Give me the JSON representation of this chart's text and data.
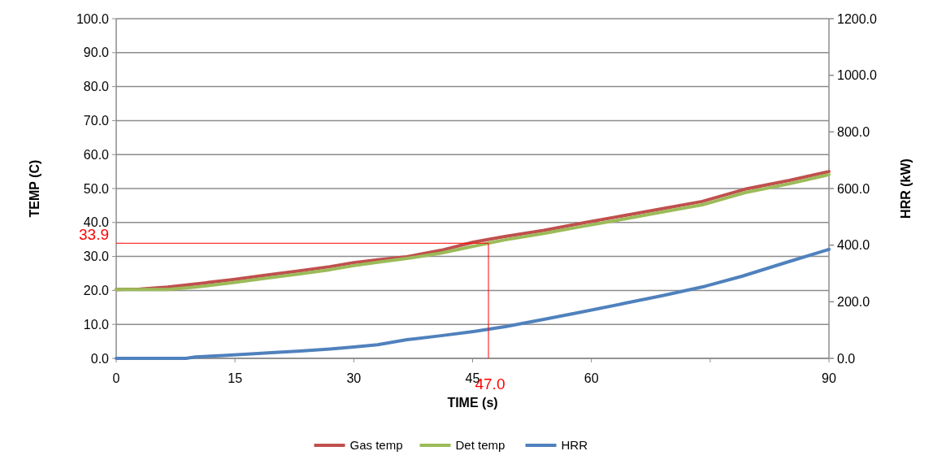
{
  "chart_data": {
    "type": "line",
    "xlabel": "TIME (s)",
    "ylabel": "TEMP (C)",
    "y2label": "HRR (kW)",
    "xlim": [
      0,
      90
    ],
    "xticks": [
      0,
      15,
      30,
      45,
      60,
      {
        "value": 75,
        "label": null
      },
      90
    ],
    "ylim": [
      0,
      100
    ],
    "yticks": [
      {
        "value": 0,
        "label": "0.0"
      },
      {
        "value": 10,
        "label": "10.0"
      },
      {
        "value": 20,
        "label": "20.0"
      },
      {
        "value": 30,
        "label": "30.0"
      },
      {
        "value": 40,
        "label": "40.0"
      },
      {
        "value": 50,
        "label": "50.0"
      },
      {
        "value": 60,
        "label": "60.0"
      },
      {
        "value": 70,
        "label": "70.0"
      },
      {
        "value": 80,
        "label": "80.0"
      },
      {
        "value": 90,
        "label": "90.0"
      },
      {
        "value": 100,
        "label": "100.0"
      }
    ],
    "y2lim": [
      0,
      1200
    ],
    "y2ticks": [
      {
        "value": 0,
        "label": "0.0"
      },
      {
        "value": 200,
        "label": "200.0"
      },
      {
        "value": 400,
        "label": "400.0"
      },
      {
        "value": 600,
        "label": "600.0"
      },
      {
        "value": 800,
        "label": "800.0"
      },
      {
        "value": 1000,
        "label": "1000.0"
      },
      {
        "value": 1200,
        "label": "1200.0"
      }
    ],
    "grid": "y",
    "legend": "bottom",
    "marker": "none",
    "line_style": "solid",
    "series": [
      {
        "name": "Gas temp",
        "color": "#c0504d",
        "x": [
          0,
          3,
          6.5,
          10,
          14.8,
          19,
          23.2,
          27,
          30,
          33,
          36.7,
          41,
          45.1,
          49.1,
          54,
          59,
          64.3,
          69,
          74,
          79.4,
          85,
          90
        ],
        "values": [
          20.3,
          20.4,
          21.0,
          21.9,
          23.2,
          24.5,
          25.8,
          27.0,
          28.2,
          29.0,
          29.9,
          31.8,
          34.2,
          35.9,
          37.7,
          39.9,
          42.1,
          44.1,
          46.2,
          49.8,
          52.4,
          55.0
        ]
      },
      {
        "name": "Det temp",
        "color": "#9bbb59",
        "x": [
          0,
          3,
          6.5,
          10,
          14.8,
          19,
          23.2,
          27,
          30,
          33,
          36.7,
          41,
          45.1,
          49.1,
          54,
          59,
          64.3,
          69,
          74,
          79.4,
          85,
          90
        ],
        "values": [
          20.3,
          20.3,
          20.3,
          21.0,
          22.3,
          23.6,
          24.9,
          26.1,
          27.3,
          28.3,
          29.4,
          31.0,
          33.0,
          34.9,
          36.8,
          38.9,
          41.1,
          43.1,
          45.2,
          48.8,
          51.4,
          54.1
        ]
      },
      {
        "name": "HRR",
        "color": "#4f81bd",
        "axis": "y2",
        "x": [
          0,
          4,
          8.8,
          10,
          13.5,
          17.9,
          20,
          23.2,
          27,
          30,
          33,
          36.7,
          41,
          45.1,
          49.1,
          54,
          59,
          64.3,
          69,
          74.4,
          79,
          84.5,
          90
        ],
        "values": [
          0,
          0,
          0,
          5,
          10,
          17,
          21,
          26,
          33,
          40,
          48,
          66,
          80,
          95,
          112,
          138,
          165,
          195,
          222,
          255,
          290,
          338,
          385
        ]
      }
    ],
    "ref_lines": [
      {
        "axis": "y",
        "value": 33.9,
        "label": "33.9",
        "color": "#ff0000"
      },
      {
        "axis": "x",
        "value": 47,
        "label": "47.0",
        "color": "#ff0000"
      }
    ]
  }
}
